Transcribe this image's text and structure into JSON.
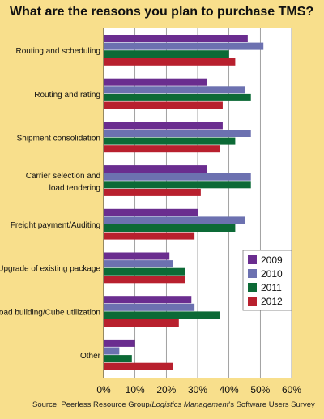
{
  "chart_data": {
    "type": "bar",
    "orientation": "horizontal",
    "title": "What are the reasons you plan to purchase TMS?",
    "categories": [
      [
        "Routing and scheduling"
      ],
      [
        "Routing and rating"
      ],
      [
        "Shipment consolidation"
      ],
      [
        "Carrier selection and",
        "load tendering"
      ],
      [
        "Freight payment/Auditing"
      ],
      [
        "Upgrade of existing package"
      ],
      [
        "Load building/Cube utilization"
      ],
      [
        "Other"
      ]
    ],
    "series": [
      {
        "name": "2009",
        "color": "#6a2d8f",
        "values": [
          46,
          33,
          38,
          33,
          30,
          21,
          28,
          10
        ]
      },
      {
        "name": "2010",
        "color": "#6c71b0",
        "values": [
          51,
          45,
          47,
          47,
          45,
          22,
          29,
          5
        ]
      },
      {
        "name": "2011",
        "color": "#0c6a36",
        "values": [
          40,
          47,
          42,
          47,
          42,
          26,
          37,
          9
        ]
      },
      {
        "name": "2012",
        "color": "#b8202e",
        "values": [
          42,
          38,
          37,
          31,
          29,
          26,
          24,
          22
        ]
      }
    ],
    "xlim": [
      0,
      60
    ],
    "xticks": [
      0,
      10,
      20,
      30,
      40,
      50,
      60
    ],
    "tick_suffix": "%",
    "grid": true,
    "legend_position": "right-center",
    "source": {
      "prefix": "Source: Peerless Resource Group/",
      "italic": "Logistics Management",
      "suffix": "'s Software Users Survey"
    }
  }
}
